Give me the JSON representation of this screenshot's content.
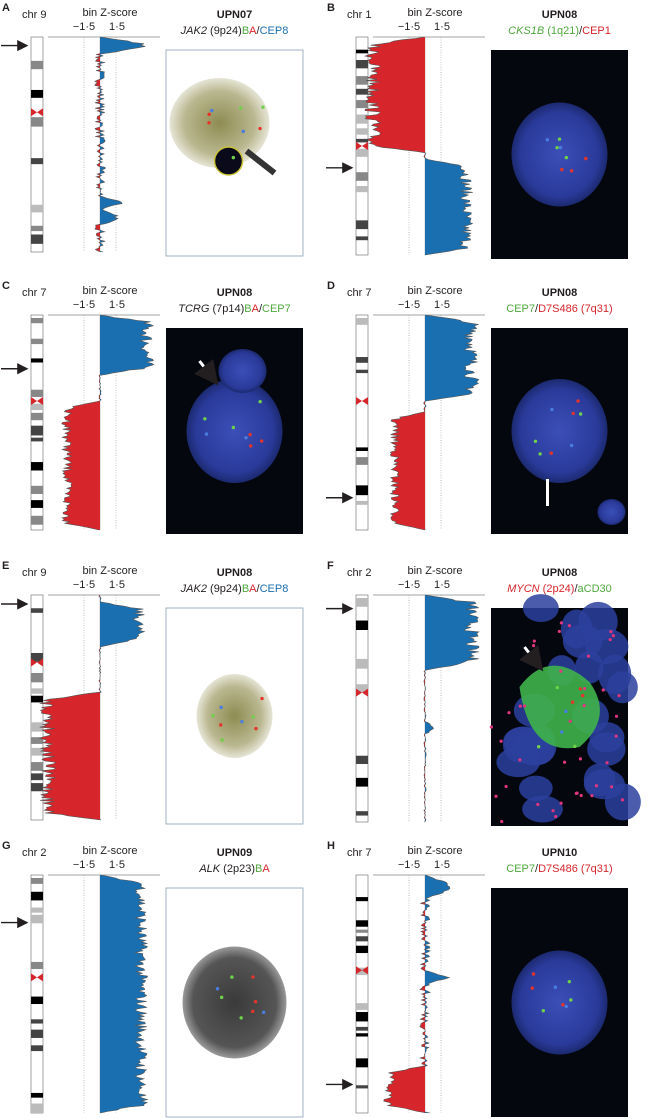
{
  "panels": [
    {
      "letter": "A",
      "chromosome": "chr 9",
      "axis_label": "bin Z-score",
      "ticks": [
        "−1·5",
        "1·5"
      ],
      "sample": "UPN07",
      "probe": [
        {
          "text": "JAK2",
          "color": "#231f20",
          "italic": true
        },
        {
          "text": " (9p24)",
          "color": "#231f20"
        },
        {
          "text": "B",
          "color": "#4fa83d"
        },
        {
          "text": "A",
          "color": "#d7262b"
        },
        {
          "text": "/",
          "color": "#231f20"
        },
        {
          "text": "CEP8",
          "color": "#1a6fb0"
        }
      ]
    },
    {
      "letter": "B",
      "chromosome": "chr 1",
      "axis_label": "bin Z-score",
      "ticks": [
        "−1·5",
        "1·5"
      ],
      "sample": "UPN08",
      "probe": [
        {
          "text": "CKS1B",
          "color": "#4fa83d",
          "italic": true
        },
        {
          "text": " (1q21)",
          "color": "#4fa83d"
        },
        {
          "text": "/",
          "color": "#231f20"
        },
        {
          "text": "CEP1",
          "color": "#d7262b"
        }
      ]
    },
    {
      "letter": "C",
      "chromosome": "chr 7",
      "axis_label": "bin Z-score",
      "ticks": [
        "−1·5",
        "1·5"
      ],
      "sample": "UPN08",
      "probe": [
        {
          "text": "TCRG",
          "color": "#231f20",
          "italic": true
        },
        {
          "text": " (7p14)",
          "color": "#231f20"
        },
        {
          "text": "B",
          "color": "#4fa83d"
        },
        {
          "text": "A",
          "color": "#d7262b"
        },
        {
          "text": "/",
          "color": "#231f20"
        },
        {
          "text": "CEP7",
          "color": "#4fa83d"
        }
      ]
    },
    {
      "letter": "D",
      "chromosome": "chr 7",
      "axis_label": "bin Z-score",
      "ticks": [
        "−1·5",
        "1·5"
      ],
      "sample": "UPN08",
      "probe": [
        {
          "text": "CEP7",
          "color": "#4fa83d"
        },
        {
          "text": "/",
          "color": "#231f20"
        },
        {
          "text": "D7S486 (7q31)",
          "color": "#d7262b"
        }
      ]
    },
    {
      "letter": "E",
      "chromosome": "chr 9",
      "axis_label": "bin Z-score",
      "ticks": [
        "−1·5",
        "1·5"
      ],
      "sample": "UPN08",
      "probe": [
        {
          "text": "JAK2",
          "color": "#231f20",
          "italic": true
        },
        {
          "text": " (9p24)",
          "color": "#231f20"
        },
        {
          "text": "B",
          "color": "#4fa83d"
        },
        {
          "text": "A",
          "color": "#d7262b"
        },
        {
          "text": "/",
          "color": "#231f20"
        },
        {
          "text": "CEP8",
          "color": "#1a6fb0"
        }
      ]
    },
    {
      "letter": "F",
      "chromosome": "chr 2",
      "axis_label": "bin Z-score",
      "ticks": [
        "−1·5",
        "1·5"
      ],
      "sample": "UPN08",
      "probe": [
        {
          "text": "MYCN",
          "color": "#d7262b",
          "italic": true
        },
        {
          "text": " (2p24)",
          "color": "#d7262b"
        },
        {
          "text": "/",
          "color": "#231f20"
        },
        {
          "text": "aCD30",
          "color": "#4fa83d"
        }
      ]
    },
    {
      "letter": "G",
      "chromosome": "chr 2",
      "axis_label": "bin Z-score",
      "ticks": [
        "−1·5",
        "1·5"
      ],
      "sample": "UPN09",
      "probe": [
        {
          "text": "ALK",
          "color": "#231f20",
          "italic": true
        },
        {
          "text": " (2p23)",
          "color": "#231f20"
        },
        {
          "text": "B",
          "color": "#4fa83d"
        },
        {
          "text": "A",
          "color": "#d7262b"
        }
      ]
    },
    {
      "letter": "H",
      "chromosome": "chr 7",
      "axis_label": "bin Z-score",
      "ticks": [
        "−1·5",
        "1·5"
      ],
      "sample": "UPN10",
      "probe": [
        {
          "text": "CEP7",
          "color": "#4fa83d"
        },
        {
          "text": "/",
          "color": "#231f20"
        },
        {
          "text": "D7S486 (7q31)",
          "color": "#d7262b"
        }
      ]
    }
  ]
}
